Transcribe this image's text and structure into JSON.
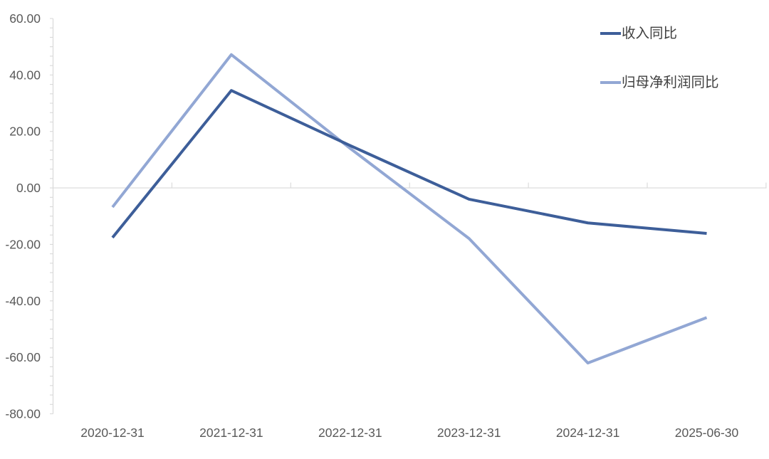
{
  "chart_data": {
    "type": "line",
    "title": "",
    "xlabel": "",
    "ylabel": "",
    "categories": [
      "2020-12-31",
      "2021-12-31",
      "2022-12-31",
      "2023-12-31",
      "2024-12-31",
      "2025-06-30"
    ],
    "series": [
      {
        "name": "收入同比",
        "color": "#3D5E99",
        "values": [
          -17.6,
          34.5,
          15.0,
          -4.0,
          -12.4,
          -16.1
        ]
      },
      {
        "name": "归母净利润同比",
        "color": "#92A7D4",
        "values": [
          -6.8,
          47.2,
          14.0,
          -17.9,
          -62.0,
          -45.9
        ]
      }
    ],
    "ylim": [
      -80,
      60
    ],
    "y_major_unit": 20,
    "y_minor_per_major": 6,
    "y_tick_labels": [
      "60.00",
      "40.00",
      "20.00",
      "0.00",
      "-20.00",
      "-40.00",
      "-60.00",
      "-80.00"
    ],
    "grid": "zero-gridline-only",
    "legend_position": "top-right",
    "colors": {
      "axis": "#D9D9D9",
      "tick_label": "#595959",
      "legend_text": "#404040",
      "background": "#FFFFFF"
    }
  }
}
